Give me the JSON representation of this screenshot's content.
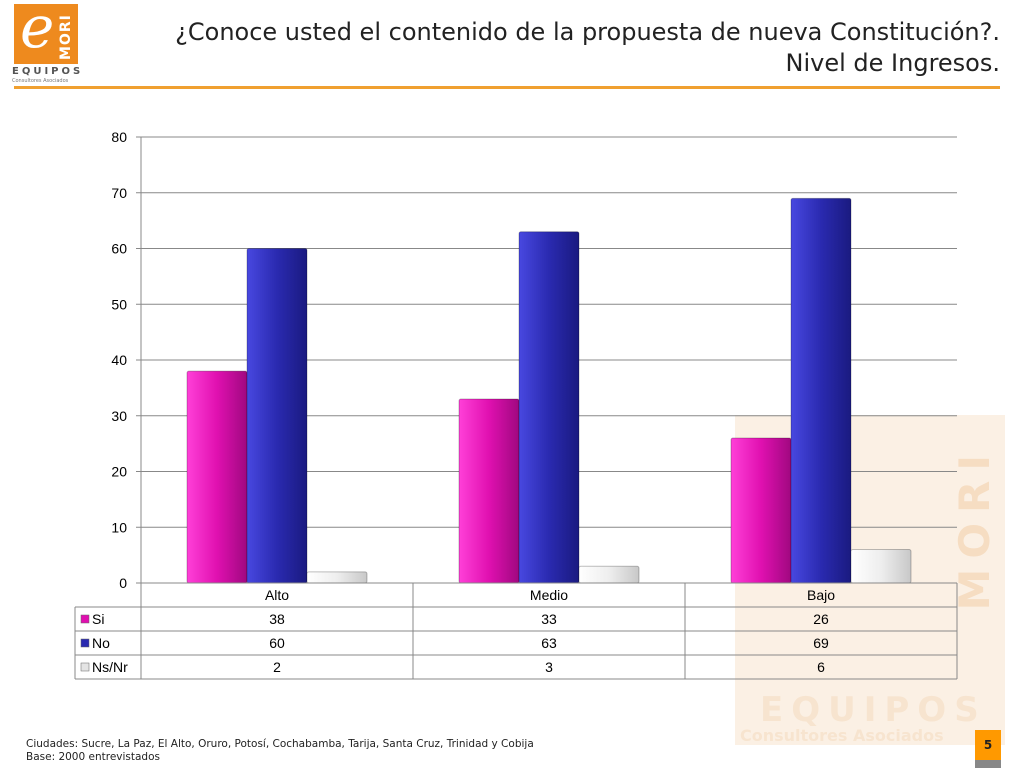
{
  "logo": {
    "letter": "e",
    "brand": "MORI",
    "name": "EQUIPOS",
    "subtitle": "Consultores Asociados"
  },
  "header": {
    "title_line1": "¿Conoce usted el contenido de la propuesta de nueva Constitución?.",
    "title_line2": "Nivel de Ingresos."
  },
  "chart_data": {
    "type": "bar",
    "categories": [
      "Alto",
      "Medio",
      "Bajo"
    ],
    "series": [
      {
        "name": "Si",
        "values": [
          38,
          33,
          26
        ],
        "color": "#e010b0"
      },
      {
        "name": "No",
        "values": [
          60,
          63,
          69
        ],
        "color": "#2a2ab0"
      },
      {
        "name": "Ns/Nr",
        "values": [
          2,
          3,
          6
        ],
        "color": "#e4e4e4"
      }
    ],
    "ylim": [
      0,
      80
    ],
    "yticks": [
      0,
      10,
      20,
      30,
      40,
      50,
      60,
      70,
      80
    ],
    "grid": true,
    "legend": "data-table",
    "title": "",
    "xlabel": "",
    "ylabel": ""
  },
  "footer": {
    "cities": "Ciudades: Sucre, La Paz, El Alto, Oruro, Potosí, Cochabamba, Tarija, Santa Cruz, Trinidad y Cobija",
    "base": "Base: 2000 entrevistados"
  },
  "page": {
    "number": "5"
  }
}
